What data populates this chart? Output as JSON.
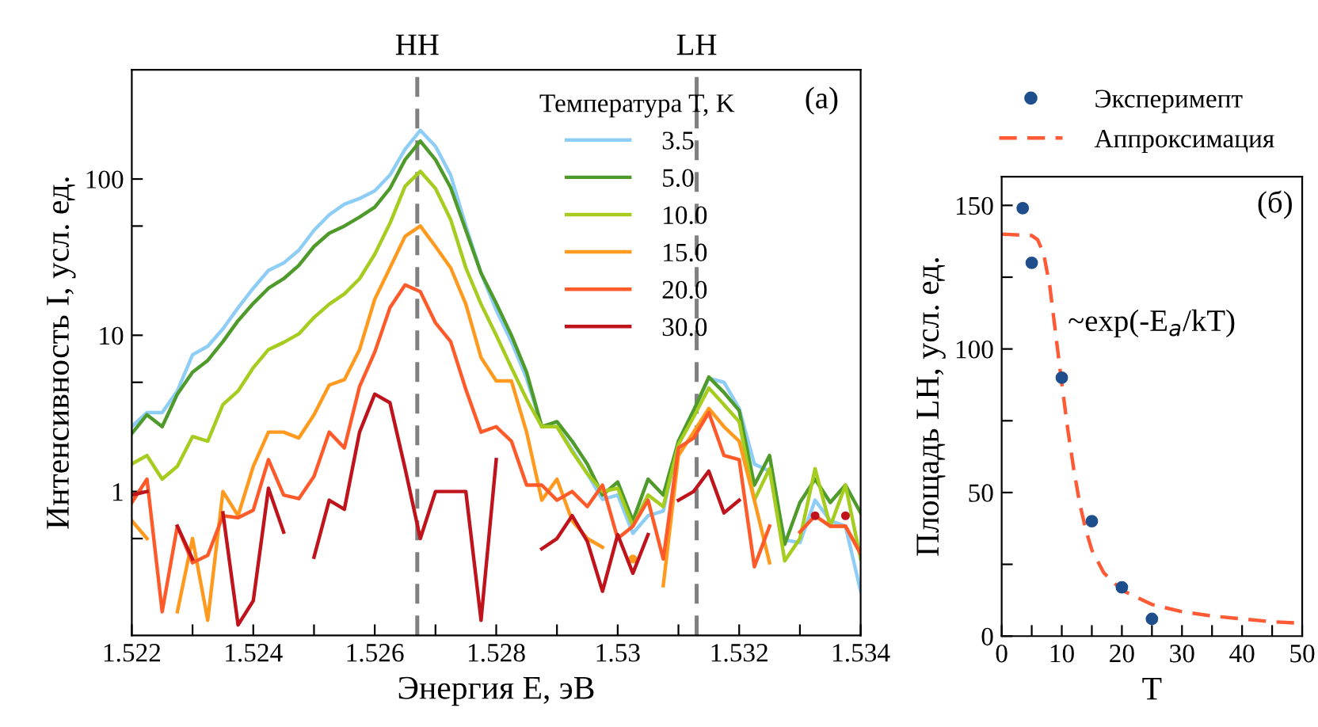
{
  "chart_data": [
    {
      "type": "line",
      "xlabel": "Энергия E, эВ",
      "ylabel": "Интенсивность I, усл. ед.",
      "legend_title": "Температура T, K",
      "legend": "top right",
      "log": true,
      "grid": false,
      "marker": "none",
      "line_style": "solid",
      "x": [
        1.522,
        1.52225,
        1.5225,
        1.52275,
        1.523,
        1.52325,
        1.5235,
        1.52375,
        1.524,
        1.52425,
        1.5245,
        1.52475,
        1.525,
        1.52525,
        1.5255,
        1.52575,
        1.526,
        1.52625,
        1.5265,
        1.52675,
        1.527,
        1.52725,
        1.5275,
        1.52775,
        1.528,
        1.52825,
        1.5285,
        1.52875,
        1.529,
        1.52925,
        1.5295,
        1.52975,
        1.53,
        1.53025,
        1.5305,
        1.53075,
        1.531,
        1.53125,
        1.5315,
        1.53175,
        1.532,
        1.53225,
        1.5325,
        1.53275,
        1.533,
        1.53325,
        1.5335,
        1.53375,
        1.534
      ],
      "xlim": [
        1.522,
        1.534
      ],
      "xticks": [
        1.522,
        1.524,
        1.526,
        1.528,
        1.53,
        1.532,
        1.534,
        {
          "value": 1.523,
          "label": null
        },
        {
          "value": 1.525,
          "label": null
        },
        {
          "value": 1.527,
          "label": null
        },
        {
          "value": 1.529,
          "label": null
        },
        {
          "value": 1.531,
          "label": null
        },
        {
          "value": 1.533,
          "label": null
        }
      ],
      "ylim": [
        0.12,
        500
      ],
      "yticks": [
        1,
        10,
        100,
        {
          "value": 0.5,
          "label": null
        },
        {
          "value": 5,
          "label": null
        },
        {
          "value": 50,
          "label": null
        }
      ],
      "ref_lines": [
        {
          "axis": "x",
          "value": 1.5267,
          "label": "HH",
          "color": "#808080",
          "line_style": "dashed"
        },
        {
          "axis": "x",
          "value": 1.5313,
          "label": "LH",
          "color": "#808080",
          "line_style": "dashed"
        }
      ],
      "annotations": [
        "(a)"
      ],
      "series": [
        {
          "name": "3.5",
          "color": "#8ecdf5",
          "values": [
            2.6,
            3.2,
            3.2,
            4.4,
            7.5,
            8.5,
            11,
            15,
            20,
            26,
            29,
            35,
            47,
            59,
            69,
            75,
            84,
            106,
            155,
            205,
            162,
            106,
            50,
            25,
            14.5,
            9.1,
            5.3,
            2.6,
            2.6,
            1.85,
            1.3,
            0.89,
            0.95,
            0.54,
            0.7,
            0.75,
            2.1,
            3.3,
            5.3,
            5.0,
            3.4,
            1.5,
            1.35,
            0.49,
            0.47,
            0.88,
            0.65,
            0.6,
            0.23
          ]
        },
        {
          "name": "5.0",
          "color": "#4e9a2a",
          "values": [
            2.35,
            3.1,
            2.6,
            4.2,
            5.8,
            6.9,
            9.1,
            12.4,
            16,
            20,
            23,
            28,
            37,
            45,
            50,
            57,
            66,
            87,
            133,
            175,
            133,
            88,
            47,
            25,
            16,
            10,
            5.8,
            2.6,
            2.8,
            2.1,
            1.5,
            0.95,
            1.15,
            0.65,
            1.2,
            0.95,
            2.1,
            3.3,
            5.4,
            4.3,
            3.3,
            1.1,
            1.7,
            0.46,
            0.85,
            1.2,
            0.85,
            1.1,
            0.73
          ]
        },
        {
          "name": "10.0",
          "color": "#a5cc1e",
          "values": [
            1.5,
            1.7,
            1.2,
            1.45,
            2.25,
            2.1,
            3.6,
            4.4,
            6.2,
            8.1,
            9,
            10.2,
            13,
            15.8,
            18.4,
            23,
            33,
            52,
            90,
            112,
            87,
            55,
            27,
            15.8,
            10,
            6.2,
            3.9,
            2.6,
            2.6,
            1.8,
            1.3,
            1.0,
            1.05,
            0.6,
            0.95,
            0.8,
            2.0,
            3.0,
            4.6,
            3.6,
            2.8,
            0.88,
            1.4,
            0.36,
            0.5,
            1.4,
            0.6,
            1.1,
            0.37
          ]
        },
        {
          "name": "15.0",
          "color": "#ff9a1f",
          "values": [
            0.65,
            0.5,
            null,
            0.17,
            0.5,
            0.15,
            1.0,
            0.7,
            1.45,
            2.4,
            2.4,
            2.2,
            3.1,
            4.8,
            5.2,
            8.1,
            17,
            27,
            43,
            50,
            37,
            27,
            15.8,
            7.2,
            5.1,
            5.1,
            2.4,
            0.88,
            1.2,
            0.65,
            0.5,
            0.44,
            null,
            0.37,
            null,
            0.25,
            1.7,
            2.4,
            3.4,
            2.6,
            2.1,
            0.88,
            0.35,
            null,
            null,
            0.7,
            0.6,
            0.6,
            0.4
          ]
        },
        {
          "name": "20.0",
          "color": "#ff5a2a",
          "values": [
            0.85,
            1.2,
            0.17,
            0.6,
            0.35,
            0.39,
            0.7,
            0.68,
            0.76,
            1.6,
            0.95,
            0.9,
            1.25,
            2.4,
            1.9,
            4.7,
            7.8,
            15,
            21,
            19,
            12,
            9.1,
            4.5,
            2.4,
            2.6,
            2.1,
            1.1,
            1.1,
            0.88,
            1.0,
            0.8,
            1.1,
            0.5,
            0.6,
            0.88,
            0.37,
            1.9,
            2.2,
            3.2,
            1.7,
            1.6,
            0.33,
            0.6,
            null,
            0.55,
            0.7,
            0.6,
            0.6,
            0.4
          ]
        },
        {
          "name": "30.0",
          "color": "#c0141c",
          "values": [
            0.95,
            1.0,
            null,
            0.6,
            0.37,
            null,
            0.73,
            0.14,
            0.2,
            1.05,
            0.55,
            null,
            0.38,
            0.88,
            0.77,
            2.4,
            4.2,
            3.7,
            1.4,
            0.5,
            1.0,
            1.0,
            1.0,
            0.15,
            1.6,
            null,
            null,
            0.43,
            0.5,
            0.7,
            0.48,
            0.23,
            0.53,
            0.3,
            0.53,
            null,
            0.88,
            1.0,
            1.35,
            0.73,
            0.88,
            null,
            null,
            null,
            null,
            0.7,
            null,
            0.7,
            null
          ]
        }
      ]
    },
    {
      "type": "scatter",
      "xlabel": "T",
      "ylabel": "Площадь LH, усл. ед.",
      "legend": "top",
      "grid": false,
      "xlim": [
        0,
        50
      ],
      "xticks": [
        0,
        10,
        20,
        30,
        40,
        50,
        {
          "value": 5,
          "label": null
        },
        {
          "value": 15,
          "label": null
        },
        {
          "value": 25,
          "label": null
        },
        {
          "value": 35,
          "label": null
        },
        {
          "value": 45,
          "label": null
        }
      ],
      "ylim": [
        0,
        160
      ],
      "yticks": [
        0,
        50,
        100,
        150,
        {
          "value": 25,
          "label": null
        },
        {
          "value": 75,
          "label": null
        },
        {
          "value": 125,
          "label": null
        }
      ],
      "annotations": [
        "(б)",
        "~exp(-E$_{a}$/kT)"
      ],
      "series": [
        {
          "name": "Эксперимепт",
          "type": "scatter",
          "marker": "circle",
          "color": "#1f4e8c",
          "x": [
            3.5,
            5,
            10,
            15,
            20,
            25
          ],
          "values": [
            149,
            130,
            90,
            40,
            17,
            6
          ]
        },
        {
          "name": "Аппроксимация",
          "type": "line",
          "line_style": "dashed",
          "marker": "none",
          "color": "#ff5a36",
          "x": [
            0,
            5,
            6,
            7,
            8,
            9,
            10,
            11,
            12,
            13,
            14,
            15,
            17,
            20,
            25,
            30,
            35,
            40,
            45,
            50
          ],
          "values": [
            140,
            139.5,
            138,
            133,
            122,
            105,
            88,
            72,
            58,
            46,
            37,
            30,
            22,
            16,
            11,
            8.5,
            7,
            6,
            5,
            4.5
          ]
        }
      ]
    }
  ]
}
